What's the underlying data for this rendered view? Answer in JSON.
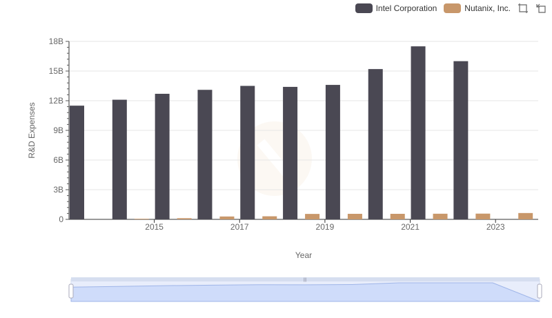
{
  "legend": {
    "items": [
      {
        "label": "Intel Corporation",
        "color": "#4a4853"
      },
      {
        "label": "Nutanix, Inc.",
        "color": "#c8976a"
      }
    ],
    "tools": [
      "zoom-icon",
      "reset-zoom-icon"
    ]
  },
  "chart_data": {
    "type": "bar",
    "title": "",
    "xlabel": "Year",
    "ylabel": "R&D Expenses",
    "categories": [
      "2014",
      "2015",
      "2016",
      "2017",
      "2018",
      "2019",
      "2020",
      "2021",
      "2022",
      "2023",
      "2024"
    ],
    "x_tick_labels": [
      "2015",
      "2017",
      "2019",
      "2021",
      "2023"
    ],
    "y_tick_labels": [
      "0",
      "3B",
      "6B",
      "9B",
      "12B",
      "15B",
      "18B"
    ],
    "ylim": [
      0,
      18000000000
    ],
    "grid": "horizontal",
    "legend_position": "top-right",
    "series": [
      {
        "name": "Intel Corporation",
        "color": "#4a4853",
        "values": [
          11500000000,
          12100000000,
          12700000000,
          13100000000,
          13500000000,
          13400000000,
          13600000000,
          15200000000,
          17500000000,
          16000000000,
          null
        ]
      },
      {
        "name": "Nutanix, Inc.",
        "color": "#c8976a",
        "values": [
          null,
          60000000,
          120000000,
          290000000,
          310000000,
          550000000,
          560000000,
          560000000,
          570000000,
          580000000,
          640000000
        ]
      }
    ]
  }
}
